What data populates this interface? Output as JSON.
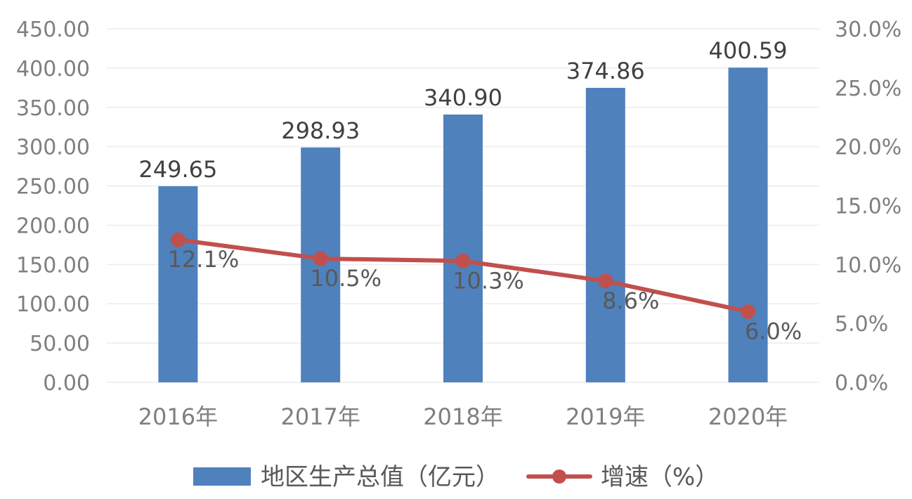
{
  "chart_data": {
    "type": "bar",
    "title": "",
    "categories": [
      "2016年",
      "2017年",
      "2018年",
      "2019年",
      "2020年"
    ],
    "series": [
      {
        "name": "地区生产总值（亿元）",
        "type": "bar",
        "axis": "left",
        "color": "#4f81bd",
        "values": [
          249.65,
          298.93,
          340.9,
          374.86,
          400.59
        ],
        "labels": [
          "249.65",
          "298.93",
          "340.90",
          "374.86",
          "400.59"
        ]
      },
      {
        "name": "增速（%）",
        "type": "line",
        "axis": "right",
        "color": "#c0504d",
        "values": [
          12.1,
          10.5,
          10.3,
          8.6,
          6.0
        ],
        "labels": [
          "12.1%",
          "10.5%",
          "10.3%",
          "8.6%",
          "6.0%"
        ]
      }
    ],
    "y_left": {
      "range": [
        0,
        450
      ],
      "ticks": [
        0,
        50,
        100,
        150,
        200,
        250,
        300,
        350,
        400,
        450
      ],
      "tick_labels": [
        "0.00",
        "50.00",
        "100.00",
        "150.00",
        "200.00",
        "250.00",
        "300.00",
        "350.00",
        "400.00",
        "450.00"
      ]
    },
    "y_right": {
      "range": [
        0,
        30
      ],
      "ticks": [
        0,
        5,
        10,
        15,
        20,
        25,
        30
      ],
      "tick_labels": [
        "0.0%",
        "5.0%",
        "10.0%",
        "15.0%",
        "20.0%",
        "25.0%",
        "30.0%"
      ]
    },
    "grid": true,
    "legend_position": "bottom"
  }
}
